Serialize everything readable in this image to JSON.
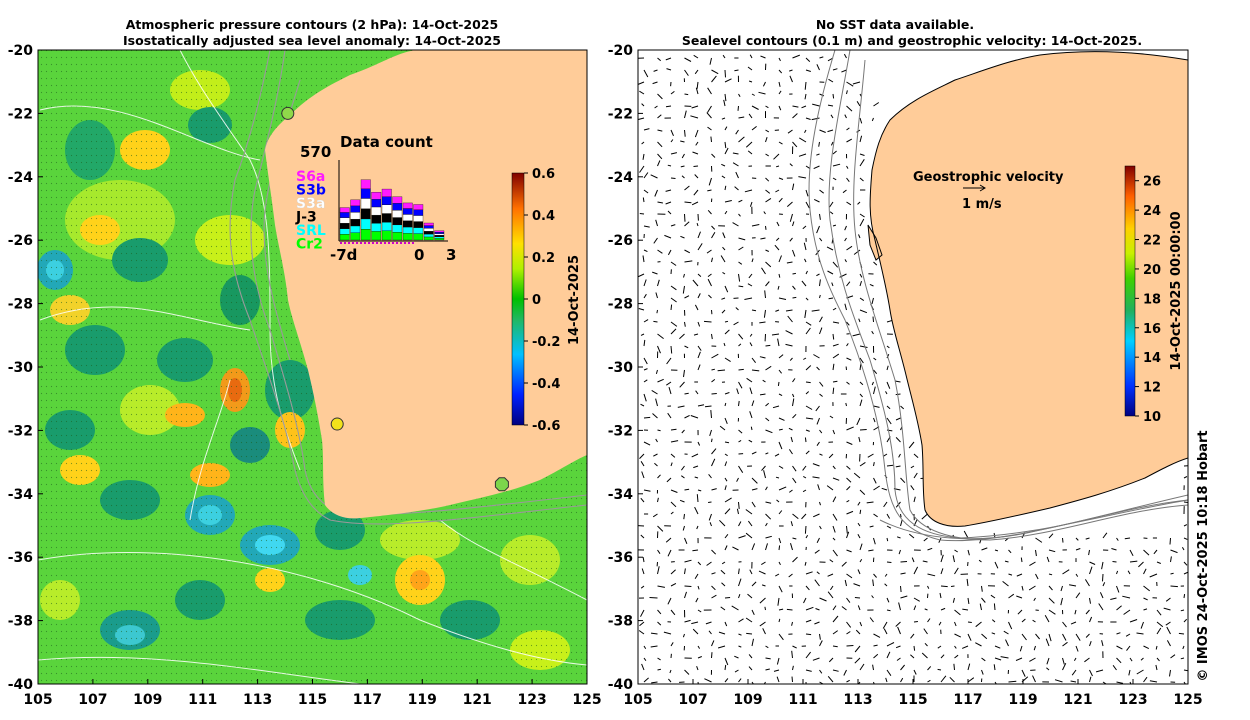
{
  "chart_data": [
    {
      "type": "heatmap",
      "title": "Atmospheric pressure contours (2 hPa): 14-Oct-2025",
      "subtitle": "Isostatically adjusted sea level anomaly: 14-Oct-2025",
      "x_ticks": [
        "105",
        "107",
        "109",
        "111",
        "113",
        "115",
        "117",
        "119",
        "121",
        "123",
        "125"
      ],
      "y_ticks": [
        "-20",
        "-22",
        "-24",
        "-26",
        "-28",
        "-30",
        "-32",
        "-34",
        "-36",
        "-38",
        "-40"
      ],
      "xlim": [
        105,
        125
      ],
      "ylim": [
        -40,
        -20
      ],
      "colorbar": {
        "label": "14-Oct-2025",
        "ticks": [
          "0.6",
          "0.4",
          "0.2",
          "0",
          "-0.2",
          "-0.4",
          "-0.6"
        ],
        "range": [
          -0.6,
          0.6
        ]
      },
      "markers": [
        {
          "lon": 114.1,
          "lat": -22.0,
          "color": "#8fd94a"
        },
        {
          "lon": 115.9,
          "lat": -31.8,
          "color": "#f2e21b"
        },
        {
          "lon": 121.9,
          "lat": -33.7,
          "color": "#7cd64b"
        }
      ],
      "inset": {
        "title": "Data count",
        "max_label": "570",
        "x_labels": [
          "-7d",
          "0",
          "3"
        ],
        "missions": [
          {
            "name": "S6a",
            "color": "#ff1aff"
          },
          {
            "name": "S3b",
            "color": "#0000ff"
          },
          {
            "name": "S3a",
            "color": "#ffffff"
          },
          {
            "name": "J-3",
            "color": "#000000"
          },
          {
            "name": "SRL",
            "color": "#00ffff"
          },
          {
            "name": "Cr2",
            "color": "#00ff00"
          }
        ],
        "bar_totals": [
          210,
          260,
          390,
          310,
          330,
          280,
          240,
          230,
          110,
          60
        ]
      }
    },
    {
      "type": "heatmap",
      "title": "No SST data available.",
      "subtitle": "Sealevel contours (0.1 m) and geostrophic velocity: 14-Oct-2025.",
      "x_ticks": [
        "105",
        "107",
        "109",
        "111",
        "113",
        "115",
        "117",
        "119",
        "121",
        "123",
        "125"
      ],
      "y_ticks": [
        "-20",
        "-22",
        "-24",
        "-26",
        "-28",
        "-30",
        "-32",
        "-34",
        "-36",
        "-38",
        "-40"
      ],
      "xlim": [
        105,
        125
      ],
      "ylim": [
        -40,
        -20
      ],
      "colorbar": {
        "label": "14-Oct-2025 00:00:00",
        "ticks": [
          "26",
          "24",
          "22",
          "20",
          "18",
          "16",
          "14",
          "12",
          "10"
        ],
        "range": [
          10,
          27
        ]
      },
      "legend": {
        "title": "Geostrophic velocity",
        "scale_label": "1 m/s"
      }
    }
  ],
  "credit": "© IMOS 24-Oct-2025 10:18 Hobart",
  "colors": {
    "land": "#ffcc99",
    "ocean_base": "#5ad43c"
  }
}
